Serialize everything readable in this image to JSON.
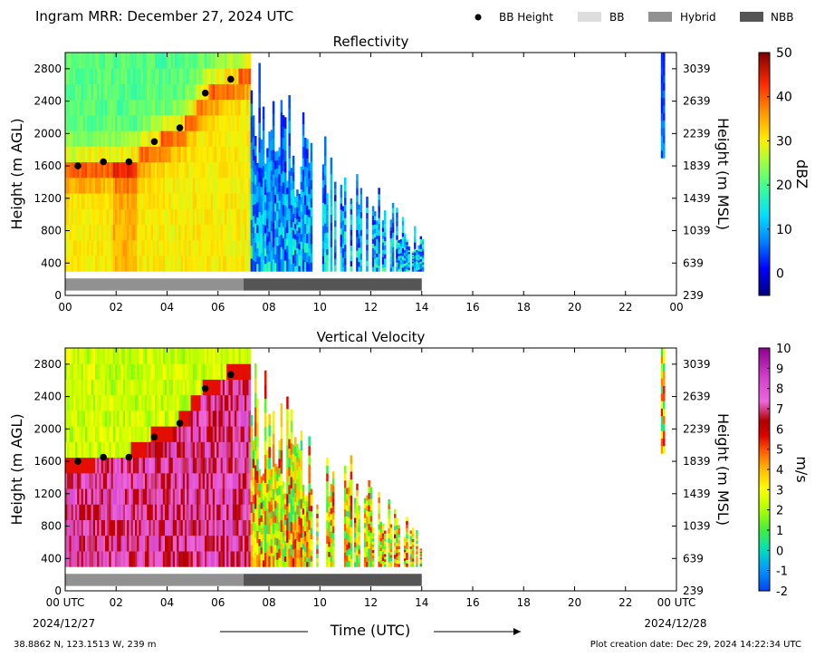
{
  "header": {
    "title": "Ingram MRR:  December 27, 2024 UTC",
    "legend": [
      {
        "label": "BB Height",
        "kind": "dot",
        "color": "#000000"
      },
      {
        "label": "BB",
        "kind": "swatch",
        "color": "#dddddd"
      },
      {
        "label": "Hybrid",
        "kind": "swatch",
        "color": "#919191"
      },
      {
        "label": "NBB",
        "kind": "swatch",
        "color": "#555555"
      }
    ]
  },
  "footer": {
    "location": "38.8862 N, 123.1513 W, 239 m",
    "creation": "Plot creation date: Dec 29, 2024 14:22:34 UTC",
    "xlabel": "Time (UTC)",
    "start_label": "00 UTC",
    "start_date": "2024/12/27",
    "end_label": "00 UTC",
    "end_date": "2024/12/28"
  },
  "chart_data": [
    {
      "type": "heatmap",
      "title": "Reflectivity",
      "ylabel": "Height (m AGL)",
      "y2label": "Height (m MSL)",
      "xlim": [
        0,
        24
      ],
      "ylim": [
        0,
        3000
      ],
      "x_ticks": [
        "00",
        "02",
        "04",
        "06",
        "08",
        "10",
        "12",
        "14",
        "16",
        "18",
        "20",
        "22",
        "00"
      ],
      "y_ticks": [
        0,
        400,
        800,
        1200,
        1600,
        2000,
        2400,
        2800
      ],
      "y2_ticks": [
        239,
        639,
        1039,
        1439,
        1839,
        2239,
        2639,
        3039
      ],
      "colorbar": {
        "label": "dBZ",
        "min": -5,
        "max": 50,
        "ticks": [
          0,
          10,
          20,
          30,
          40,
          50
        ]
      },
      "bb_height": {
        "x": [
          0.5,
          1.5,
          2.5,
          3.5,
          4.5,
          5.5,
          6.5
        ],
        "y": [
          1600,
          1650,
          1650,
          1900,
          2070,
          2500,
          2670
        ]
      },
      "bb_type": [
        {
          "start": 0,
          "end": 7,
          "type": "Hybrid"
        },
        {
          "start": 7,
          "end": 14,
          "type": "NBB"
        }
      ]
    },
    {
      "type": "heatmap",
      "title": "Vertical Velocity",
      "ylabel": "Height (m AGL)",
      "y2label": "Height (m MSL)",
      "xlim": [
        0,
        24
      ],
      "ylim": [
        0,
        3000
      ],
      "x_ticks": [
        "00 UTC",
        "02",
        "04",
        "06",
        "08",
        "10",
        "12",
        "14",
        "16",
        "18",
        "20",
        "22",
        "00 UTC"
      ],
      "y_ticks": [
        0,
        400,
        800,
        1200,
        1600,
        2000,
        2400,
        2800
      ],
      "y2_ticks": [
        239,
        639,
        1039,
        1439,
        1839,
        2239,
        2639,
        3039
      ],
      "colorbar": {
        "label": "m/s",
        "min": -2,
        "max": 10,
        "ticks": [
          -2,
          -1,
          0,
          1,
          2,
          3,
          4,
          5,
          6,
          7,
          8,
          9,
          10
        ]
      },
      "bb_height": {
        "x": [
          0.5,
          1.5,
          2.5,
          3.5,
          4.5,
          5.5,
          6.5
        ],
        "y": [
          1600,
          1650,
          1650,
          1900,
          2070,
          2500,
          2670
        ]
      },
      "bb_type": [
        {
          "start": 0,
          "end": 7,
          "type": "Hybrid"
        },
        {
          "start": 7,
          "end": 14,
          "type": "NBB"
        }
      ]
    }
  ]
}
